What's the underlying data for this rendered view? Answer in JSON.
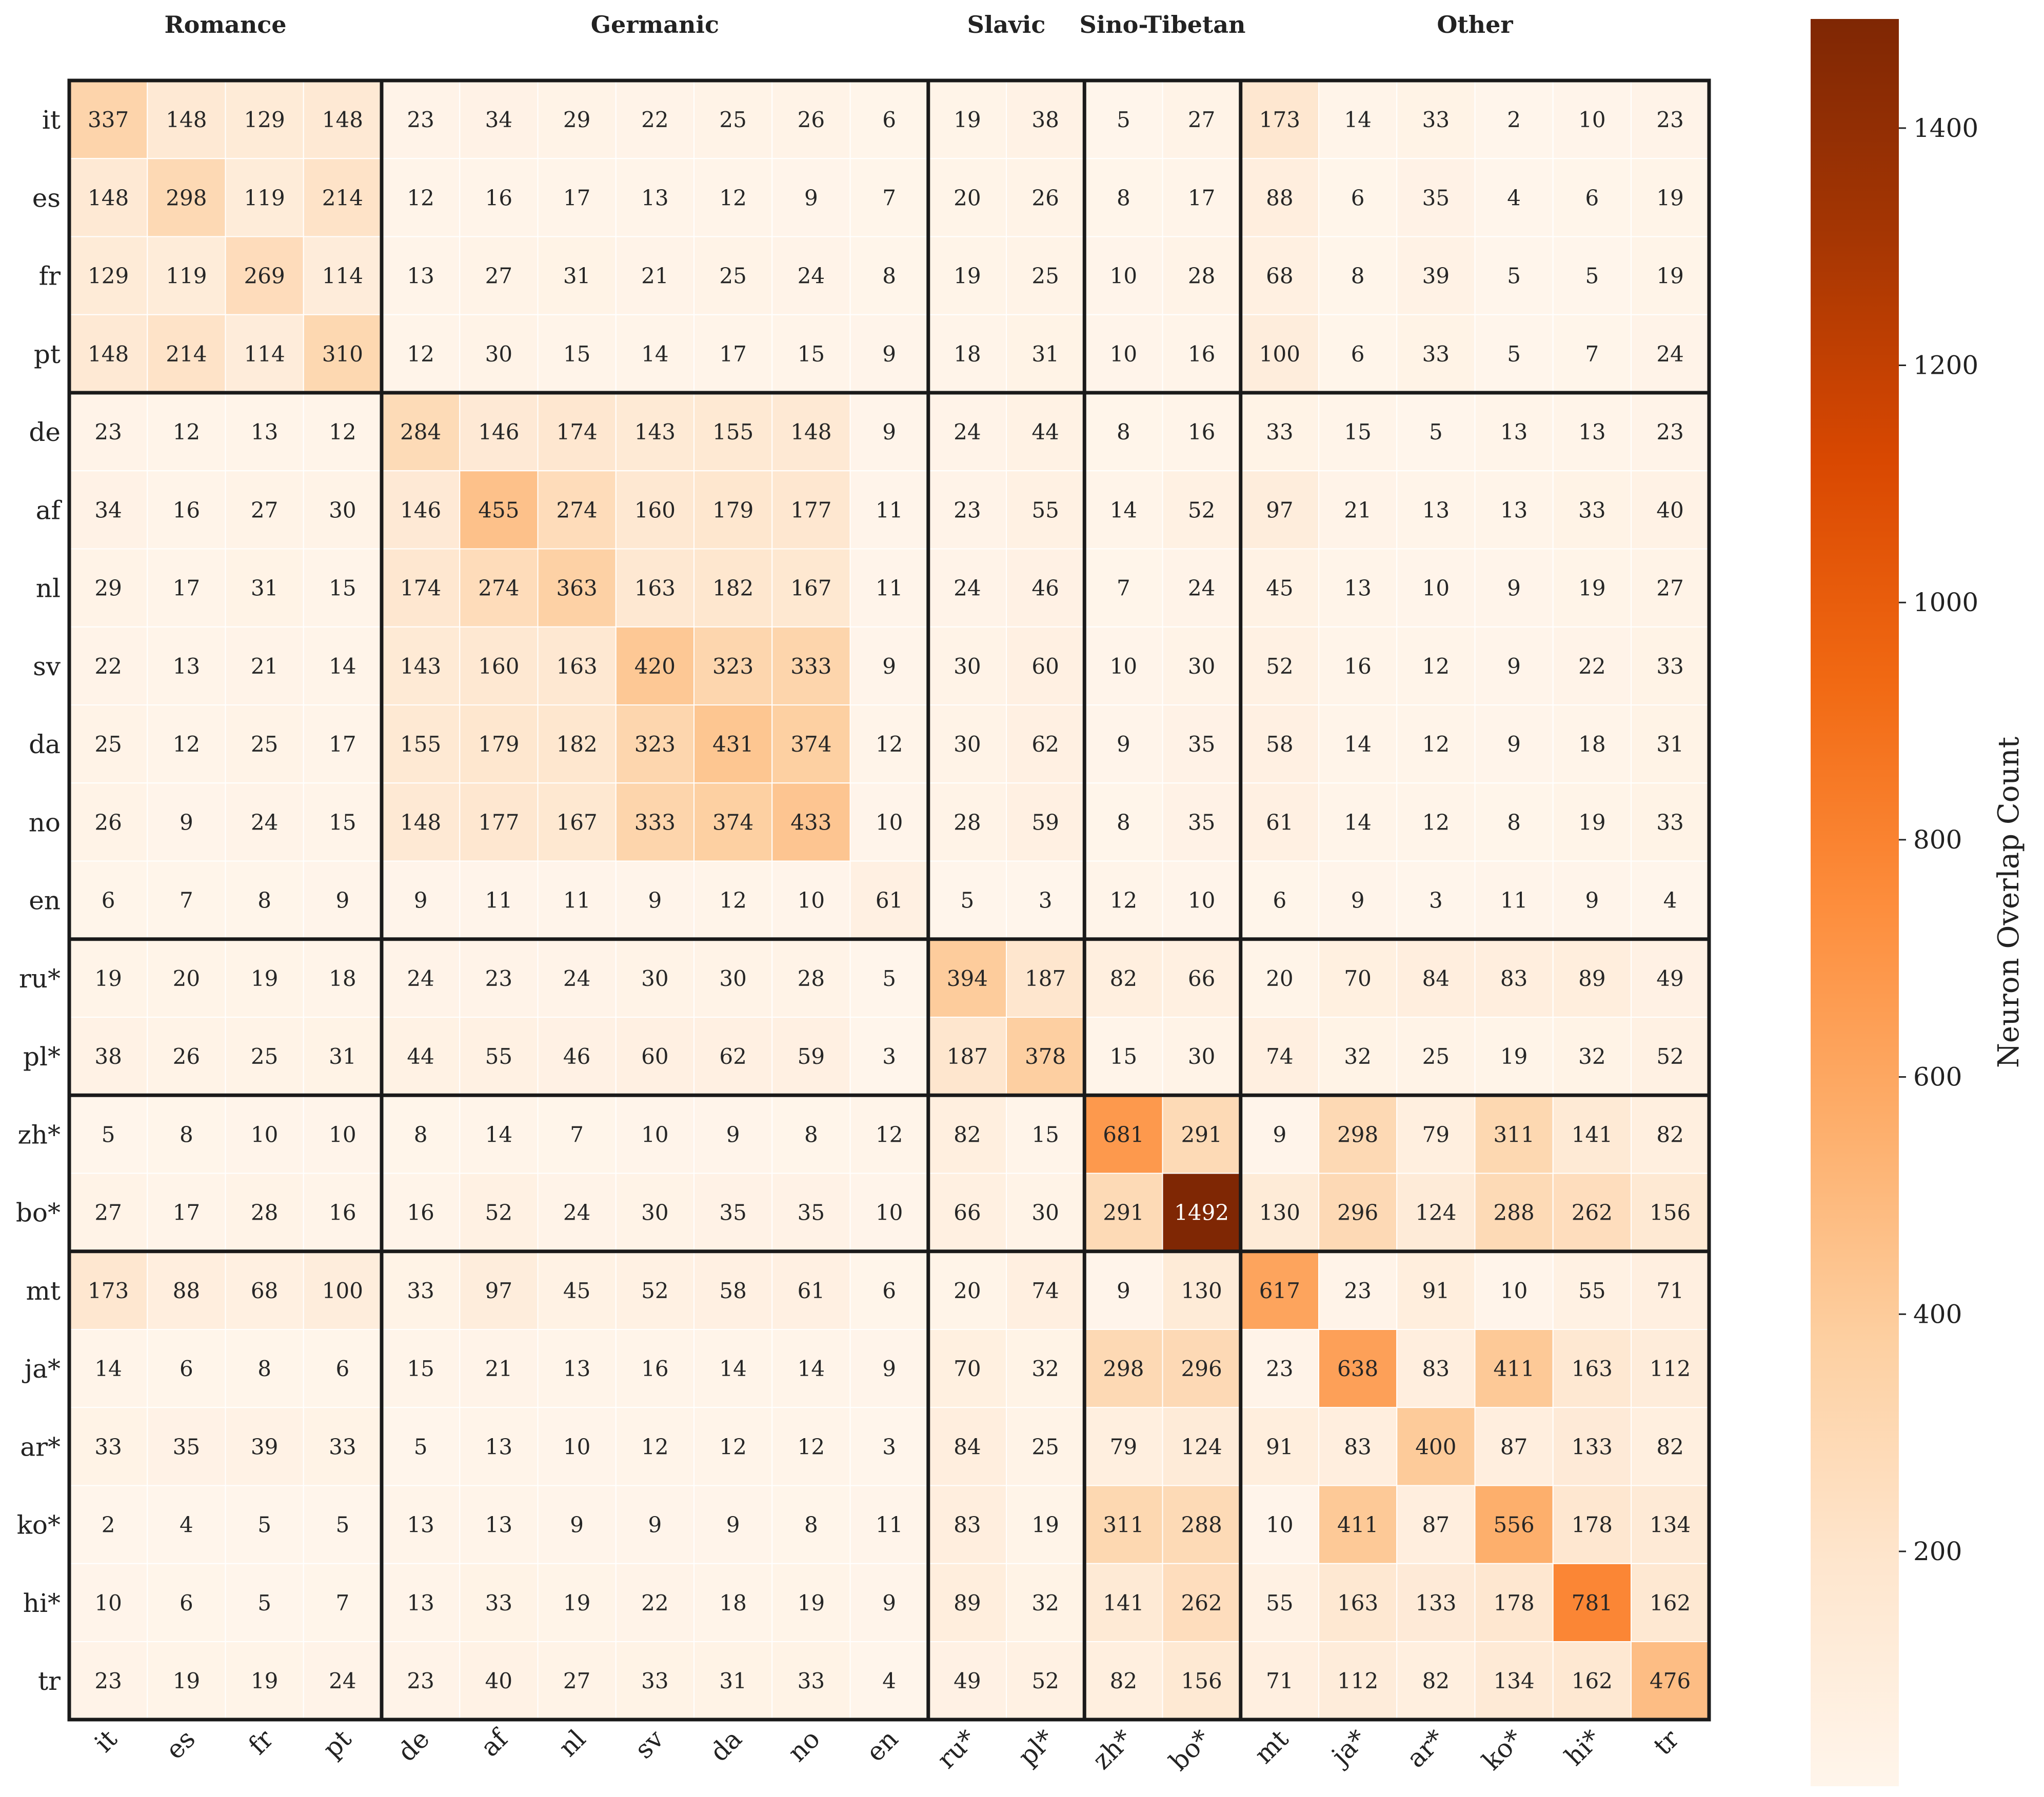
{
  "chart_data": {
    "type": "heatmap",
    "languages": [
      "it",
      "es",
      "fr",
      "pt",
      "de",
      "af",
      "nl",
      "sv",
      "da",
      "no",
      "en",
      "ru*",
      "pl*",
      "zh*",
      "bo*",
      "mt",
      "ja*",
      "ar*",
      "ko*",
      "hi*",
      "tr"
    ],
    "groups": [
      {
        "name": "Romance",
        "start": 0,
        "count": 4
      },
      {
        "name": "Germanic",
        "start": 4,
        "count": 7
      },
      {
        "name": "Slavic",
        "start": 11,
        "count": 2
      },
      {
        "name": "Sino-Tibetan",
        "start": 13,
        "count": 2
      },
      {
        "name": "Other",
        "start": 15,
        "count": 6
      }
    ],
    "values": [
      [
        337,
        148,
        129,
        148,
        23,
        34,
        29,
        22,
        25,
        26,
        6,
        19,
        38,
        5,
        27,
        173,
        14,
        33,
        2,
        10,
        23
      ],
      [
        148,
        298,
        119,
        214,
        12,
        16,
        17,
        13,
        12,
        9,
        7,
        20,
        26,
        8,
        17,
        88,
        6,
        35,
        4,
        6,
        19
      ],
      [
        129,
        119,
        269,
        114,
        13,
        27,
        31,
        21,
        25,
        24,
        8,
        19,
        25,
        10,
        28,
        68,
        8,
        39,
        5,
        5,
        19
      ],
      [
        148,
        214,
        114,
        310,
        12,
        30,
        15,
        14,
        17,
        15,
        9,
        18,
        31,
        10,
        16,
        100,
        6,
        33,
        5,
        7,
        24
      ],
      [
        23,
        12,
        13,
        12,
        284,
        146,
        174,
        143,
        155,
        148,
        9,
        24,
        44,
        8,
        16,
        33,
        15,
        5,
        13,
        13,
        23
      ],
      [
        34,
        16,
        27,
        30,
        146,
        455,
        274,
        160,
        179,
        177,
        11,
        23,
        55,
        14,
        52,
        97,
        21,
        13,
        13,
        33,
        40
      ],
      [
        29,
        17,
        31,
        15,
        174,
        274,
        363,
        163,
        182,
        167,
        11,
        24,
        46,
        7,
        24,
        45,
        13,
        10,
        9,
        19,
        27
      ],
      [
        22,
        13,
        21,
        14,
        143,
        160,
        163,
        420,
        323,
        333,
        9,
        30,
        60,
        10,
        30,
        52,
        16,
        12,
        9,
        22,
        33
      ],
      [
        25,
        12,
        25,
        17,
        155,
        179,
        182,
        323,
        431,
        374,
        12,
        30,
        62,
        9,
        35,
        58,
        14,
        12,
        9,
        18,
        31
      ],
      [
        26,
        9,
        24,
        15,
        148,
        177,
        167,
        333,
        374,
        433,
        10,
        28,
        59,
        8,
        35,
        61,
        14,
        12,
        8,
        19,
        33
      ],
      [
        6,
        7,
        8,
        9,
        9,
        11,
        11,
        9,
        12,
        10,
        61,
        5,
        3,
        12,
        10,
        6,
        9,
        3,
        11,
        9,
        4
      ],
      [
        19,
        20,
        19,
        18,
        24,
        23,
        24,
        30,
        30,
        28,
        5,
        394,
        187,
        82,
        66,
        20,
        70,
        84,
        83,
        89,
        49
      ],
      [
        38,
        26,
        25,
        31,
        44,
        55,
        46,
        60,
        62,
        59,
        3,
        187,
        378,
        15,
        30,
        74,
        32,
        25,
        19,
        32,
        52
      ],
      [
        5,
        8,
        10,
        10,
        8,
        14,
        7,
        10,
        9,
        8,
        12,
        82,
        15,
        681,
        291,
        9,
        298,
        79,
        311,
        141,
        82
      ],
      [
        27,
        17,
        28,
        16,
        16,
        52,
        24,
        30,
        35,
        35,
        10,
        66,
        30,
        291,
        1492,
        130,
        296,
        124,
        288,
        262,
        156
      ],
      [
        173,
        88,
        68,
        100,
        33,
        97,
        45,
        52,
        58,
        61,
        6,
        20,
        74,
        9,
        130,
        617,
        23,
        91,
        10,
        55,
        71
      ],
      [
        14,
        6,
        8,
        6,
        15,
        21,
        13,
        16,
        14,
        14,
        9,
        70,
        32,
        298,
        296,
        23,
        638,
        83,
        411,
        163,
        112
      ],
      [
        33,
        35,
        39,
        33,
        5,
        13,
        10,
        12,
        12,
        12,
        3,
        84,
        25,
        79,
        124,
        91,
        83,
        400,
        87,
        133,
        82
      ],
      [
        2,
        4,
        5,
        5,
        13,
        13,
        9,
        9,
        9,
        8,
        11,
        83,
        19,
        311,
        288,
        10,
        411,
        87,
        556,
        178,
        134
      ],
      [
        10,
        6,
        5,
        7,
        13,
        33,
        19,
        22,
        18,
        19,
        9,
        89,
        32,
        141,
        262,
        55,
        163,
        133,
        178,
        781,
        162
      ],
      [
        23,
        19,
        19,
        24,
        23,
        40,
        27,
        33,
        31,
        33,
        4,
        49,
        52,
        82,
        156,
        71,
        112,
        82,
        134,
        162,
        476
      ]
    ],
    "colorbar": {
      "label": "Neuron Overlap Count",
      "min": 2,
      "max": 1492,
      "ticks": [
        200,
        400,
        600,
        800,
        1000,
        1200,
        1400
      ],
      "colormap": "Oranges",
      "colors": [
        "#fff5eb",
        "#fee6ce",
        "#fdd0a2",
        "#fdae6b",
        "#fd8d3c",
        "#f16913",
        "#d94801",
        "#a63603",
        "#7f2704"
      ]
    }
  }
}
